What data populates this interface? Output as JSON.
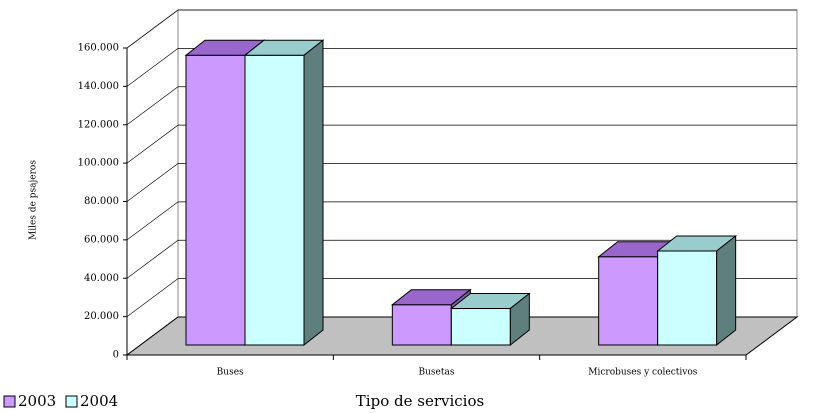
{
  "chart_data": {
    "type": "bar3d",
    "y_label": "Miles de psajeros",
    "x_label": "Tipo de servicios",
    "categories": [
      "Buses",
      "Busetas",
      "Microbuses y colectivos"
    ],
    "series": [
      {
        "name": "2003",
        "color": "#cc99ff",
        "top_color": "#9966cc",
        "side_color": "#7f5fa0",
        "values": [
          151000,
          21000,
          46000
        ]
      },
      {
        "name": "2004",
        "color": "#ccffff",
        "top_color": "#99cccc",
        "side_color": "#5f7f7f",
        "values": [
          151000,
          19000,
          49000
        ]
      }
    ],
    "ylim": [
      0,
      160000
    ],
    "yticks": [
      0,
      {
        "value": 20000,
        "label": "20.000"
      },
      {
        "value": 40000,
        "label": "40.000"
      },
      {
        "value": 60000,
        "label": "60.000"
      },
      {
        "value": 80000,
        "label": "80.000"
      },
      {
        "value": 100000,
        "label": "100.000"
      },
      {
        "value": 120000,
        "label": "120.000"
      },
      {
        "value": 140000,
        "label": "140.000"
      },
      {
        "value": 160000,
        "label": "160.000"
      }
    ],
    "grid": true,
    "legend": "bottom-left"
  }
}
